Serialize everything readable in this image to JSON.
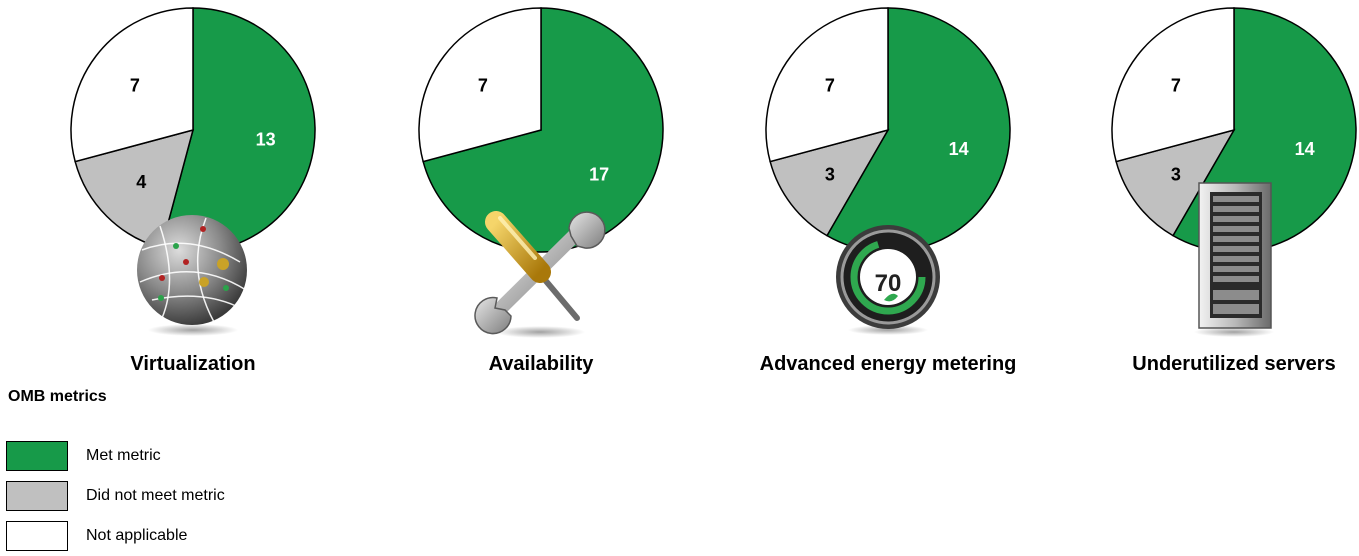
{
  "legend": {
    "title": "OMB metrics",
    "items": [
      {
        "key": "met",
        "label": "Met metric",
        "color": "#179a49"
      },
      {
        "key": "not_met",
        "label": "Did not meet metric",
        "color": "#c0c0c0"
      },
      {
        "key": "na",
        "label": "Not applicable",
        "color": "#ffffff"
      }
    ]
  },
  "chart_data": [
    {
      "type": "pie",
      "title": "Virtualization",
      "icon": "globe-network-icon",
      "slices": [
        {
          "category": "Met metric",
          "value": 13,
          "color": "#179a49"
        },
        {
          "category": "Did not meet metric",
          "value": 4,
          "color": "#c0c0c0"
        },
        {
          "category": "Not applicable",
          "value": 7,
          "color": "#ffffff"
        }
      ]
    },
    {
      "type": "pie",
      "title": "Availability",
      "icon": "wrench-screwdriver-icon",
      "slices": [
        {
          "category": "Met metric",
          "value": 17,
          "color": "#179a49"
        },
        {
          "category": "Did not meet metric",
          "value": 0,
          "color": "#c0c0c0"
        },
        {
          "category": "Not applicable",
          "value": 7,
          "color": "#ffffff"
        }
      ]
    },
    {
      "type": "pie",
      "title": "Advanced energy metering",
      "icon": "thermostat-meter-icon",
      "icon_text": "70",
      "slices": [
        {
          "category": "Met metric",
          "value": 14,
          "color": "#179a49"
        },
        {
          "category": "Did not meet metric",
          "value": 3,
          "color": "#c0c0c0"
        },
        {
          "category": "Not applicable",
          "value": 7,
          "color": "#ffffff"
        }
      ]
    },
    {
      "type": "pie",
      "title": "Underutilized servers",
      "icon": "server-rack-icon",
      "slices": [
        {
          "category": "Met metric",
          "value": 14,
          "color": "#179a49"
        },
        {
          "category": "Did not meet metric",
          "value": 3,
          "color": "#c0c0c0"
        },
        {
          "category": "Not applicable",
          "value": 7,
          "color": "#ffffff"
        }
      ]
    }
  ]
}
